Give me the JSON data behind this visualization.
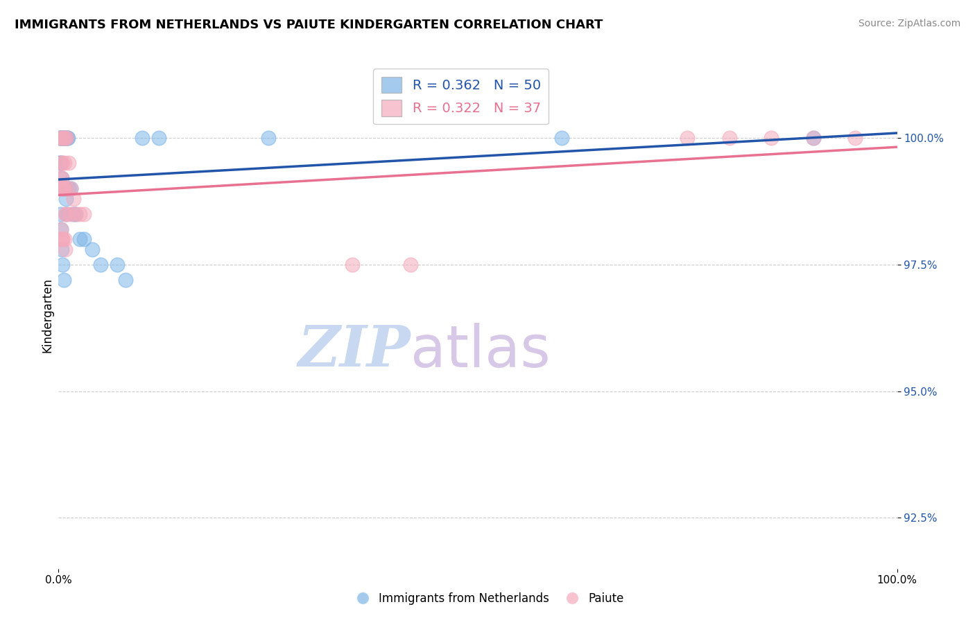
{
  "title": "IMMIGRANTS FROM NETHERLANDS VS PAIUTE KINDERGARTEN CORRELATION CHART",
  "source_text": "Source: ZipAtlas.com",
  "ylabel": "Kindergarten",
  "xlim": [
    0.0,
    100.0
  ],
  "ylim": [
    91.5,
    101.5
  ],
  "yticks": [
    92.5,
    95.0,
    97.5,
    100.0
  ],
  "ytick_labels": [
    "92.5%",
    "95.0%",
    "97.5%",
    "100.0%"
  ],
  "xticks": [
    0.0,
    100.0
  ],
  "xtick_labels": [
    "0.0%",
    "100.0%"
  ],
  "legend_labels": [
    "Immigrants from Netherlands",
    "Paiute"
  ],
  "R_blue": 0.362,
  "N_blue": 50,
  "R_pink": 0.322,
  "N_pink": 37,
  "blue_color": "#7EB6E8",
  "pink_color": "#F4AABC",
  "blue_line_color": "#2255AA",
  "pink_line_color": "#E87090",
  "watermark_zip": "ZIP",
  "watermark_atlas": "atlas",
  "watermark_color_zip": "#C8D8F0",
  "watermark_color_atlas": "#D8C8E8",
  "blue_x": [
    0.2,
    0.3,
    0.4,
    0.5,
    0.6,
    0.7,
    0.8,
    0.9,
    1.0,
    1.1,
    0.15,
    0.25,
    0.35,
    0.45,
    0.55,
    0.65,
    0.75,
    0.85,
    0.95,
    1.05,
    0.1,
    0.2,
    0.3,
    0.4,
    0.5,
    0.6,
    0.7,
    0.8,
    0.9,
    1.0,
    1.2,
    1.5,
    1.8,
    2.0,
    2.5,
    3.0,
    4.0,
    5.0,
    7.0,
    8.0,
    0.2,
    0.3,
    0.4,
    0.5,
    0.6,
    10.0,
    12.0,
    25.0,
    60.0,
    90.0
  ],
  "blue_y": [
    100.0,
    100.0,
    100.0,
    100.0,
    100.0,
    100.0,
    100.0,
    100.0,
    100.0,
    100.0,
    100.0,
    100.0,
    100.0,
    100.0,
    100.0,
    100.0,
    100.0,
    100.0,
    100.0,
    100.0,
    99.5,
    99.5,
    99.5,
    99.2,
    99.0,
    99.0,
    99.0,
    99.0,
    98.8,
    98.5,
    99.0,
    99.0,
    98.5,
    98.5,
    98.0,
    98.0,
    97.8,
    97.5,
    97.5,
    97.2,
    98.5,
    98.2,
    97.8,
    97.5,
    97.2,
    100.0,
    100.0,
    100.0,
    100.0,
    100.0
  ],
  "pink_x": [
    0.2,
    0.4,
    0.6,
    0.8,
    1.0,
    0.3,
    0.5,
    0.7,
    1.2,
    1.5,
    0.2,
    0.4,
    0.6,
    0.8,
    1.0,
    1.5,
    2.0,
    0.3,
    0.5,
    0.7,
    0.2,
    0.4,
    0.6,
    1.0,
    1.8,
    2.5,
    3.0,
    0.3,
    0.5,
    0.8,
    35.0,
    42.0,
    75.0,
    80.0,
    85.0,
    90.0,
    95.0
  ],
  "pink_y": [
    100.0,
    100.0,
    100.0,
    100.0,
    100.0,
    99.5,
    99.5,
    99.5,
    99.5,
    99.0,
    99.0,
    99.0,
    99.0,
    98.5,
    98.5,
    98.5,
    98.5,
    98.0,
    98.0,
    98.0,
    99.2,
    99.2,
    99.0,
    99.0,
    98.8,
    98.5,
    98.5,
    98.2,
    98.0,
    97.8,
    97.5,
    97.5,
    100.0,
    100.0,
    100.0,
    100.0,
    100.0
  ],
  "blue_trendline": [
    [
      0.0,
      100.0
    ],
    [
      98.8,
      100.0
    ]
  ],
  "pink_trendline": [
    [
      0.0,
      100.0
    ],
    [
      99.0,
      100.0
    ]
  ]
}
